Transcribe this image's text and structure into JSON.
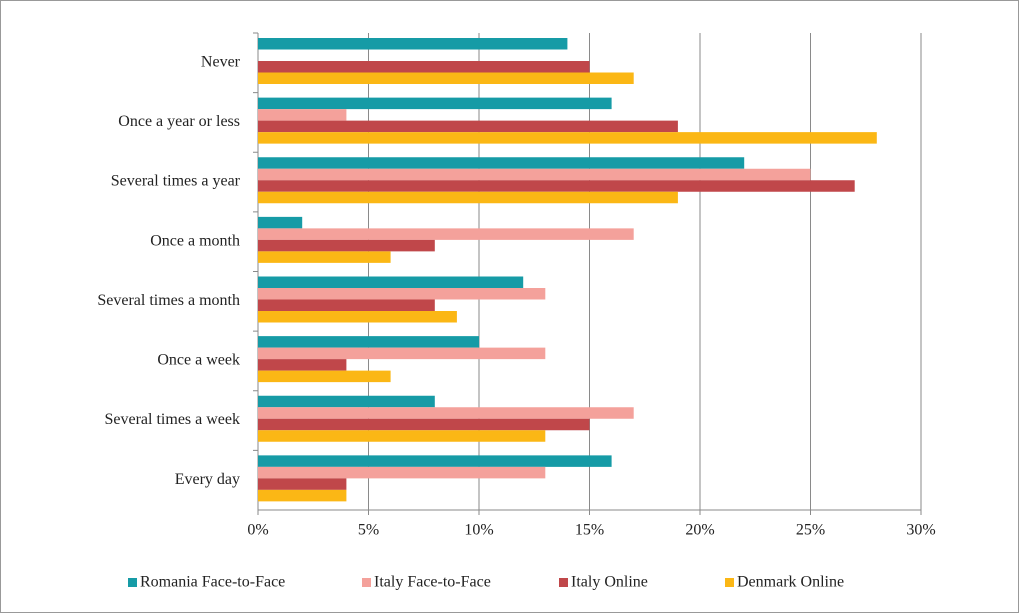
{
  "chart_data": {
    "type": "bar",
    "orientation": "horizontal",
    "categories": [
      "Never",
      "Once a year or less",
      "Several times a year",
      "Once a month",
      "Several times a month",
      "Once a week",
      "Several times a week",
      "Every day"
    ],
    "series": [
      {
        "name": "Romania Face-to-Face",
        "color": "#169ba6",
        "values": [
          14,
          16,
          22,
          2,
          12,
          10,
          8,
          16
        ]
      },
      {
        "name": "Italy Face-to-Face",
        "color": "#f4a19b",
        "values": [
          0,
          4,
          25,
          17,
          13,
          13,
          17,
          13
        ]
      },
      {
        "name": "Italy Online",
        "color": "#c0474a",
        "values": [
          15,
          19,
          27,
          8,
          8,
          4,
          15,
          4
        ]
      },
      {
        "name": "Denmark Online",
        "color": "#fbb715",
        "values": [
          17,
          28,
          19,
          6,
          9,
          6,
          13,
          4
        ]
      }
    ],
    "xlim": [
      0,
      30
    ],
    "xticks": [
      {
        "value": 0,
        "label": "0%"
      },
      {
        "value": 5,
        "label": "5%"
      },
      {
        "value": 10,
        "label": "10%"
      },
      {
        "value": 15,
        "label": "15%"
      },
      {
        "value": 20,
        "label": "20%"
      },
      {
        "value": 25,
        "label": "25%"
      },
      {
        "value": 30,
        "label": "30%"
      }
    ],
    "grid": true,
    "legend": "bottom"
  }
}
